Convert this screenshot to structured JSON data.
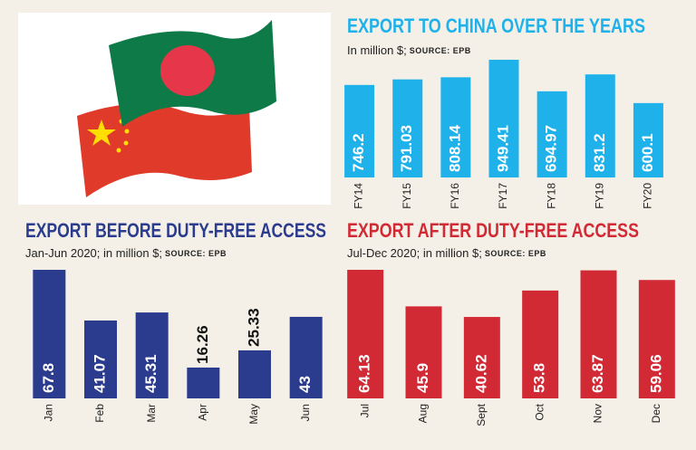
{
  "chart_data": [
    {
      "type": "bar",
      "title": "EXPORT TO CHINA OVER THE YEARS",
      "subtitle": "In million $;",
      "source": "SOURCE: EPB",
      "categories": [
        "FY14",
        "FY15",
        "FY16",
        "FY17",
        "FY18",
        "FY19",
        "FY20"
      ],
      "values": [
        746.2,
        791.03,
        808.14,
        949.41,
        694.97,
        831.2,
        600.1
      ],
      "color": "#1fb2ea"
    },
    {
      "type": "bar",
      "title": "EXPORT BEFORE DUTY-FREE ACCESS",
      "subtitle": "Jan-Jun 2020; in million $;",
      "source": "SOURCE: EPB",
      "categories": [
        "Jan",
        "Feb",
        "Mar",
        "Apr",
        "May",
        "Jun"
      ],
      "values": [
        67.8,
        41.07,
        45.31,
        16.26,
        25.33,
        43
      ],
      "color": "#2b3c8e"
    },
    {
      "type": "bar",
      "title": "EXPORT AFTER DUTY-FREE ACCESS",
      "subtitle": "Jul-Dec 2020; in million $;",
      "source": "SOURCE: EPB",
      "categories": [
        "Jul",
        "Aug",
        "Sept",
        "Oct",
        "Nov",
        "Dec"
      ],
      "values": [
        64.13,
        45.9,
        40.62,
        53.8,
        63.87,
        59.06
      ],
      "color": "#d22a35"
    }
  ]
}
